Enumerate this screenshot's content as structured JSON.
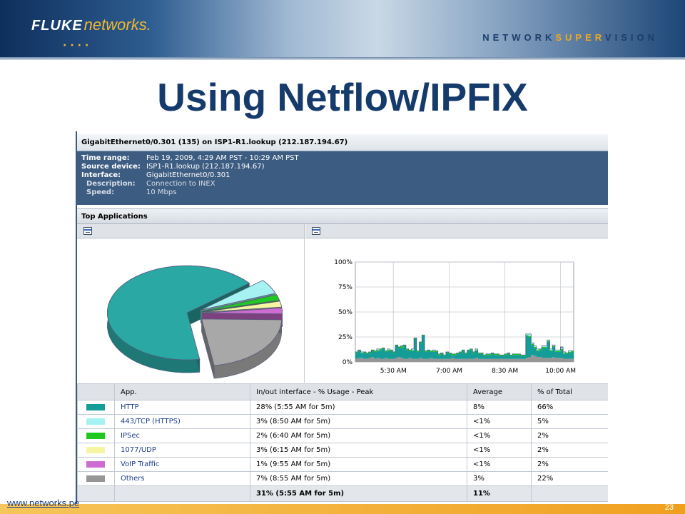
{
  "banner": {
    "logo_fluke": "FLUKE",
    "logo_networks": "networks.",
    "tagline_a": "NETWORK",
    "tagline_b": "SUPER",
    "tagline_c": "VISION"
  },
  "slide": {
    "title": "Using Netflow/IPFIX",
    "footer_url": "www.networks.pe",
    "page_number": "23"
  },
  "report": {
    "interface_header": "GigabitEthernet0/0.301 (135) on ISP1-R1.lookup (212.187.194.67)",
    "info": [
      {
        "label": "Time range:",
        "value": "Feb 19, 2009, 4:29 AM PST - 10:29 AM PST",
        "sub": false
      },
      {
        "label": "Source device:",
        "value": "ISP1-R1.lookup (212.187.194.67)",
        "sub": false
      },
      {
        "label": "Interface:",
        "value": "GigabitEthernet0/0.301",
        "sub": false
      },
      {
        "label": "Description:",
        "value": "Connection to INEX",
        "sub": true
      },
      {
        "label": "Speed:",
        "value": "10 Mbps",
        "sub": true
      }
    ],
    "section_title": "Top Applications",
    "table": {
      "headers": [
        "",
        "App.",
        "In/out interface - % Usage - Peak",
        "Average",
        "% of Total"
      ],
      "rows": [
        {
          "color": "#149c98",
          "app": "HTTP",
          "peak": "28% (5:55 AM for 5m)",
          "average": "8%",
          "total": "66%"
        },
        {
          "color": "#a6f2f2",
          "app": "443/TCP (HTTPS)",
          "peak": "3% (8:50 AM for 5m)",
          "average": "<1%",
          "total": "5%"
        },
        {
          "color": "#1ec81e",
          "app": "IPSec",
          "peak": "2% (6:40 AM for 5m)",
          "average": "<1%",
          "total": "2%"
        },
        {
          "color": "#f5f5a2",
          "app": "1077/UDP",
          "peak": "3% (6:15 AM for 5m)",
          "average": "<1%",
          "total": "2%"
        },
        {
          "color": "#cf6cd2",
          "app": "VoIP Traffic",
          "peak": "1% (9:55 AM for 5m)",
          "average": "<1%",
          "total": "2%"
        },
        {
          "color": "#969696",
          "app": "Others",
          "peak": "7% (8:55 AM for 5m)",
          "average": "3%",
          "total": "22%"
        }
      ],
      "total_row": {
        "peak": "31% (5:55 AM for 5m)",
        "average": "11%"
      }
    }
  },
  "chart_data": [
    {
      "type": "pie",
      "labels": [
        "HTTP",
        "443/TCP (HTTPS)",
        "IPSec",
        "1077/UDP",
        "VoIP Traffic",
        "Others"
      ],
      "values": [
        66,
        5,
        2,
        2,
        2,
        22
      ],
      "colors": [
        "#2aa8a4",
        "#a6f2f2",
        "#22c822",
        "#f5f5a2",
        "#cf6cd2",
        "#a8a8a8"
      ],
      "style": "3d exploded"
    },
    {
      "type": "area",
      "stacked": true,
      "yticks": [
        "100%",
        "75%",
        "50%",
        "25%",
        "0%"
      ],
      "ylim": [
        0,
        100
      ],
      "xticks": [
        "5:30 AM",
        "7:00 AM",
        "8:30 AM",
        "10:00 AM"
      ],
      "grid": true,
      "series": [
        {
          "name": "Others",
          "color": "#969696",
          "values": [
            3,
            4,
            4,
            3,
            3,
            4,
            5,
            3,
            4,
            3,
            3,
            4,
            3,
            3,
            3,
            4,
            5,
            4,
            3,
            3,
            4,
            3,
            3,
            3,
            4,
            3,
            3,
            3,
            4,
            3,
            3,
            3,
            3,
            3,
            3,
            3,
            4,
            3,
            3,
            3,
            3,
            3,
            3,
            3,
            3,
            4,
            3,
            3,
            3,
            3,
            3,
            3,
            3,
            3,
            3,
            3,
            3,
            3,
            3,
            3,
            3,
            3,
            3,
            3,
            4,
            5,
            7,
            6,
            5,
            5,
            4,
            4,
            4,
            4,
            5,
            4,
            4,
            4,
            3,
            3,
            3,
            3
          ]
        },
        {
          "name": "HTTP",
          "color": "#149c98",
          "values": [
            6,
            7,
            5,
            6,
            5,
            5,
            6,
            7,
            7,
            9,
            10,
            6,
            8,
            8,
            6,
            12,
            9,
            10,
            13,
            9,
            7,
            8,
            20,
            7,
            15,
            23,
            7,
            8,
            6,
            7,
            7,
            4,
            5,
            3,
            6,
            5,
            3,
            4,
            5,
            6,
            8,
            5,
            8,
            9,
            6,
            7,
            5,
            5,
            3,
            4,
            4,
            5,
            4,
            4,
            3,
            3,
            4,
            5,
            3,
            4,
            4,
            4,
            3,
            3,
            22,
            20,
            10,
            8,
            6,
            7,
            10,
            10,
            16,
            7,
            10,
            6,
            6,
            8,
            5,
            5,
            6,
            7
          ]
        },
        {
          "name": "IPSec",
          "color": "#1ec81e",
          "values": [
            1,
            1,
            0,
            1,
            1,
            1,
            1,
            1,
            1,
            1,
            1,
            1,
            1,
            1,
            1,
            1,
            1,
            2,
            1,
            1,
            1,
            1,
            1,
            1,
            1,
            1,
            1,
            1,
            1,
            1,
            1,
            1,
            1,
            1,
            1,
            1,
            1,
            1,
            1,
            1,
            1,
            1,
            1,
            1,
            1,
            1,
            1,
            1,
            1,
            1,
            1,
            1,
            1,
            1,
            1,
            1,
            1,
            1,
            1,
            1,
            1,
            1,
            1,
            1,
            1,
            1,
            1,
            1,
            1,
            1,
            1,
            1,
            1,
            1,
            1,
            1,
            1,
            1,
            1,
            1,
            1,
            1
          ]
        },
        {
          "name": "443/TCP (HTTPS)",
          "color": "#a6f2f2",
          "values": [
            0,
            0,
            1,
            0,
            0,
            0,
            0,
            0,
            1,
            0,
            0,
            0,
            1,
            0,
            0,
            0,
            0,
            0,
            0,
            0,
            0,
            1,
            0,
            0,
            0,
            0,
            0,
            0,
            0,
            1,
            0,
            0,
            0,
            0,
            0,
            0,
            0,
            0,
            0,
            0,
            0,
            0,
            0,
            0,
            0,
            1,
            0,
            0,
            0,
            0,
            0,
            0,
            0,
            0,
            0,
            0,
            0,
            0,
            0,
            0,
            0,
            0,
            0,
            0,
            1,
            2,
            1,
            1,
            1,
            0,
            1,
            1,
            1,
            1,
            1,
            1,
            1,
            1,
            1,
            0,
            1,
            0
          ]
        },
        {
          "name": "VoIP Traffic",
          "color": "#cf6cd2",
          "values": [
            0,
            0,
            0,
            0,
            0,
            0,
            0,
            0,
            0,
            0,
            0,
            0,
            0,
            0,
            0,
            0,
            0,
            0,
            0,
            0,
            0,
            0,
            0,
            0,
            0,
            0,
            0,
            0,
            0,
            0,
            0,
            0,
            0,
            0,
            0,
            0,
            0,
            0,
            0,
            0,
            0,
            0,
            0,
            0,
            0,
            0,
            0,
            0,
            0,
            0,
            0,
            0,
            0,
            0,
            0,
            0,
            0,
            0,
            0,
            0,
            0,
            0,
            0,
            0,
            0,
            0,
            0,
            0,
            0,
            0,
            0,
            0,
            0,
            0,
            0,
            0,
            0,
            1,
            0,
            0,
            0,
            0
          ]
        }
      ]
    }
  ]
}
